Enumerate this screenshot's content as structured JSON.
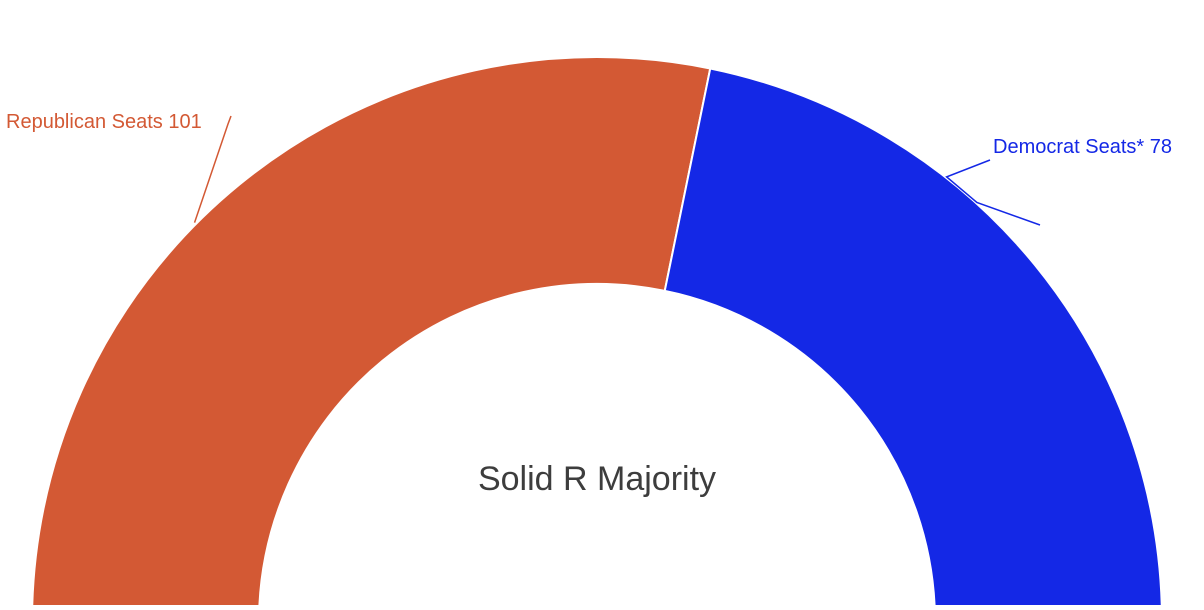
{
  "chart_data": {
    "type": "pie",
    "variant": "half-donut",
    "categories": [
      "Republican Seats",
      "Democrat Seats*"
    ],
    "values": [
      101,
      78
    ],
    "colors": [
      "#D35934",
      "#1428E6"
    ],
    "labels": [
      "Republican Seats 101",
      "Democrat Seats* 78"
    ],
    "center_text": "Solid R Majority",
    "legend": "none"
  }
}
